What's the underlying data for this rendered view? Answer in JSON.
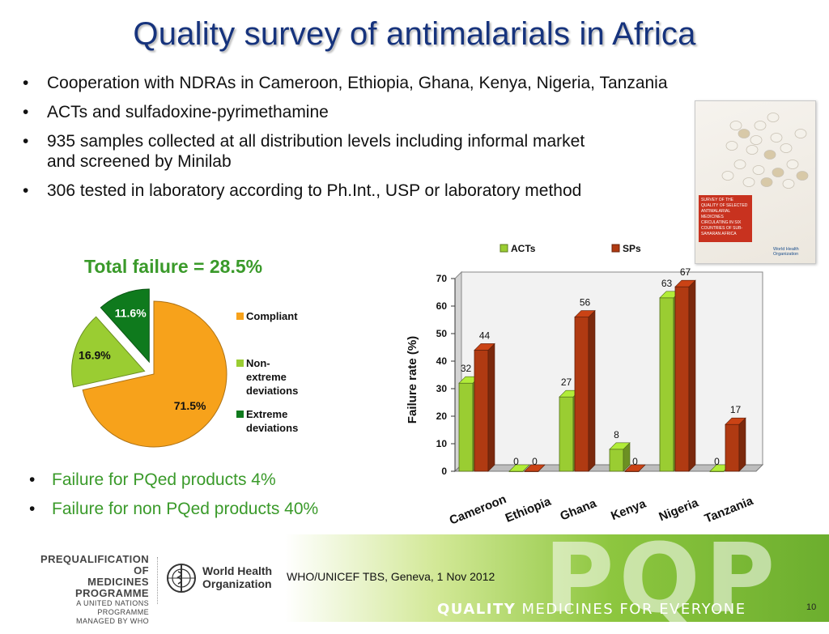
{
  "slide": {
    "title": "Quality survey of antimalarials in Africa",
    "bullets": [
      {
        "line1": "Cooperation with NDRAs in Cameroon, Ethiopia, Ghana, Kenya, Nigeria, Tanzania",
        "line2": ""
      },
      {
        "line1": "ACTs and sulfadoxine-pyrimethamine",
        "line2": ""
      },
      {
        "line1": "935 samples collected at all distribution levels including informal market",
        "line2": "and screened by Minilab"
      },
      {
        "line1": "306 tested in laboratory according to Ph.Int., USP or laboratory method",
        "line2": ""
      }
    ],
    "bottom_bullets": [
      "Failure for PQed products 4%",
      "Failure for non PQed products 40%"
    ],
    "cover": {
      "text": "SURVEY OF THE QUALITY OF SELECTED ANTIMALARIAL MEDICINES CIRCULATING IN SIX COUNTRIES OF SUB-SAHARAN AFRICA",
      "org": "World Health Organization"
    },
    "footer": {
      "pq_line1": "PREQUALIFICATION OF",
      "pq_line2": "MEDICINES PROGRAMME",
      "pq_line3": "A UNITED NATIONS PROGRAMME",
      "pq_line4": "MANAGED BY WHO",
      "who_line1": "World Health",
      "who_line2": "Organization",
      "event": "WHO/UNICEF TBS, Geneva, 1 Nov 2012",
      "pqp": "PQP",
      "slogan_bold": "QUALITY",
      "slogan_rest": " MEDICINES FOR EVERYONE",
      "page": "10"
    },
    "colors": {
      "title": "#16337d",
      "green_text": "#3a9a2a",
      "orange": "#f7a21b",
      "light_green": "#9acd32",
      "dark_green": "#0f7a1d",
      "sp_red": "#b03a12"
    }
  },
  "chart_data": [
    {
      "type": "pie",
      "title": "Total failure = 28.5%",
      "slices": [
        {
          "label": "Compliant",
          "value": 71.5,
          "display": "71.5%",
          "color": "#f7a21b"
        },
        {
          "label": "Non-extreme deviations",
          "value": 16.9,
          "display": "16.9%",
          "color": "#9acd32"
        },
        {
          "label": "Extreme deviations",
          "value": 11.6,
          "display": "11.6%",
          "color": "#0f7a1d"
        }
      ],
      "legend": {
        "placement": "right",
        "entries": [
          {
            "lines": [
              "Compliant"
            ],
            "color": "#f7a21b"
          },
          {
            "lines": [
              "Non-",
              "extreme",
              "deviations"
            ],
            "color": "#9acd32"
          },
          {
            "lines": [
              "Extreme",
              "deviations"
            ],
            "color": "#0f7a1d"
          }
        ]
      }
    },
    {
      "type": "bar",
      "categories": [
        "Cameroon",
        "Ethiopia",
        "Ghana",
        "Kenya",
        "Nigeria",
        "Tanzania"
      ],
      "series": [
        {
          "name": "ACTs",
          "values": [
            32,
            0,
            27,
            8,
            63,
            0
          ],
          "color": "#9acd32"
        },
        {
          "name": "SPs",
          "values": [
            44,
            0,
            56,
            0,
            67,
            17
          ],
          "color": "#b03a12"
        }
      ],
      "ylabel": "Failure rate (%)",
      "ylim": [
        0,
        70
      ],
      "yticks": [
        0,
        10,
        20,
        30,
        40,
        50,
        60,
        70
      ],
      "legend_placement": "top",
      "grid": false,
      "style": "3d"
    }
  ]
}
